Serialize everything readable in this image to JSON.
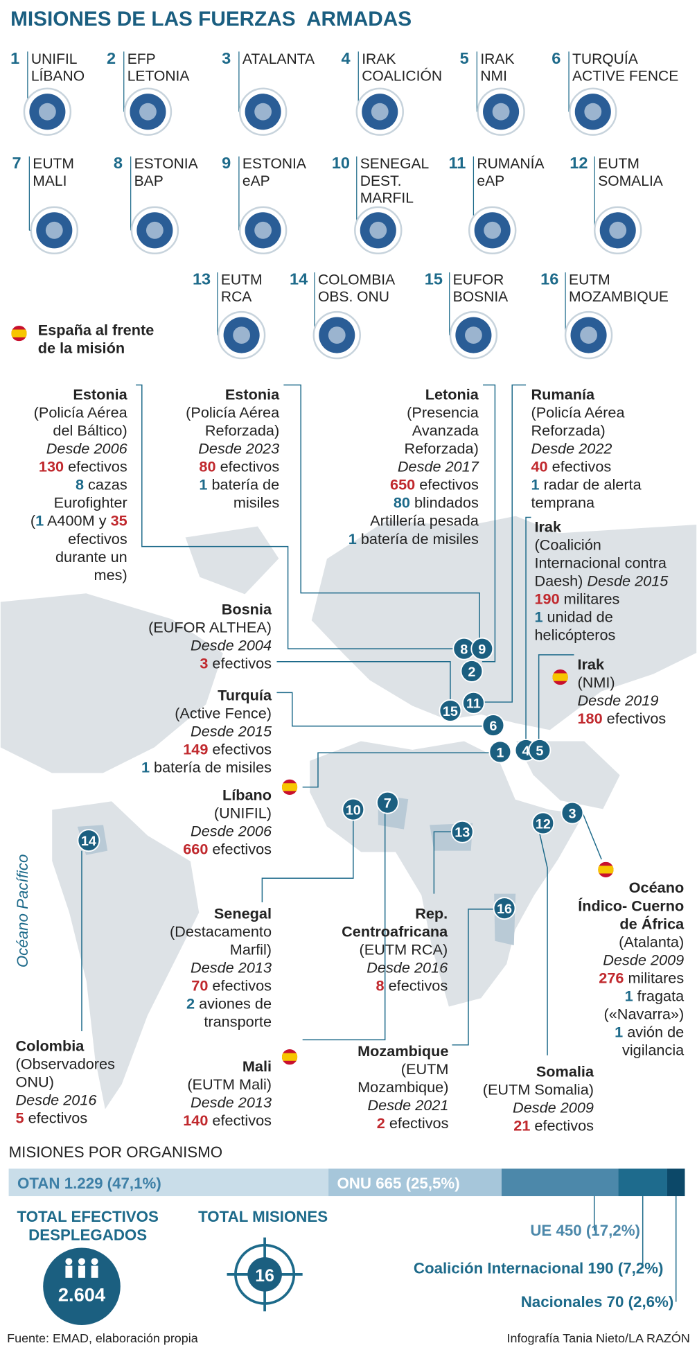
{
  "title": "MISIONES DE LAS FUERZAS  ARMADAS",
  "missions": [
    {
      "number": "1",
      "name": [
        "UNIFIL",
        "LÍBANO"
      ]
    },
    {
      "number": "2",
      "name": [
        "EFP",
        "LETONIA"
      ]
    },
    {
      "number": "3",
      "name": [
        "ATALANTA"
      ]
    },
    {
      "number": "4",
      "name": [
        "IRAK",
        "COALICIÓN"
      ]
    },
    {
      "number": "5",
      "name": [
        "IRAK",
        "NMI"
      ]
    },
    {
      "number": "6",
      "name": [
        "TURQUÍA",
        "ACTIVE FENCE"
      ]
    },
    {
      "number": "7",
      "name": [
        "EUTM",
        "MALI"
      ]
    },
    {
      "number": "8",
      "name": [
        "ESTONIA",
        "BAP"
      ]
    },
    {
      "number": "9",
      "name": [
        "ESTONIA",
        "eAP"
      ]
    },
    {
      "number": "10",
      "name": [
        "SENEGAL",
        "DEST.",
        "MARFIL"
      ]
    },
    {
      "number": "11",
      "name": [
        "RUMANÍA",
        "eAP"
      ]
    },
    {
      "number": "12",
      "name": [
        "EUTM",
        "SOMALIA"
      ]
    },
    {
      "number": "13",
      "name": [
        "EUTM",
        "RCA"
      ]
    },
    {
      "number": "14",
      "name": [
        "COLOMBIA",
        "OBS. ONU"
      ]
    },
    {
      "number": "15",
      "name": [
        "EUFOR",
        "BOSNIA"
      ]
    },
    {
      "number": "16",
      "name": [
        "EUTM",
        "MOZAMBIQUE"
      ]
    }
  ],
  "legend": [
    "España al frente",
    "de la misión"
  ],
  "ocean_label": "Océano Pacífico",
  "callouts": [
    {
      "title": [
        "Estonia"
      ],
      "lines": [
        "(Policía Aérea",
        "del Báltico)",
        [
          {
            "text": "Desde 2006",
            "style": "italic"
          }
        ],
        [
          {
            "text": "130",
            "style": "red"
          },
          " efectivos"
        ],
        [
          {
            "text": "8",
            "style": "blue"
          },
          " cazas"
        ],
        "Eurofighter",
        [
          "(",
          {
            "text": "1",
            "style": "blue"
          },
          " A400M y ",
          {
            "text": "35",
            "style": "red"
          }
        ],
        "efectivos",
        "durante un",
        "mes)"
      ]
    },
    {
      "title": [
        "Estonia"
      ],
      "lines": [
        "(Policía Aérea",
        "Reforzada)",
        [
          {
            "text": "Desde 2023",
            "style": "italic"
          }
        ],
        [
          {
            "text": "80",
            "style": "red"
          },
          " efectivos"
        ],
        [
          {
            "text": "1",
            "style": "blue"
          },
          " batería de"
        ],
        "misiles"
      ]
    },
    {
      "title": [
        "Letonia"
      ],
      "lines": [
        "(Presencia",
        "Avanzada",
        "Reforzada)",
        [
          {
            "text": "Desde 2017",
            "style": "italic"
          }
        ],
        [
          {
            "text": "650",
            "style": "red"
          },
          " efectivos"
        ],
        [
          {
            "text": "80",
            "style": "blue"
          },
          " blindados"
        ],
        "Artillería pesada",
        [
          {
            "text": "1",
            "style": "blue"
          },
          " batería de misiles"
        ]
      ]
    },
    {
      "title": [
        "Rumanía"
      ],
      "lines": [
        "(Policía Aérea",
        "Reforzada)",
        [
          {
            "text": "Desde 2022",
            "style": "italic"
          }
        ],
        [
          {
            "text": "40",
            "style": "red"
          },
          " efectivos"
        ],
        [
          {
            "text": "1",
            "style": "blue"
          },
          " radar de alerta"
        ],
        "temprana"
      ]
    },
    {
      "title": [
        "Irak"
      ],
      "lines": [
        "(Coalición",
        "Internacional contra",
        [
          "Daesh) ",
          {
            "text": "Desde 2015",
            "style": "italic"
          }
        ],
        [
          {
            "text": "190",
            "style": "red"
          },
          " militares"
        ],
        [
          {
            "text": "1",
            "style": "blue"
          },
          " unidad de"
        ],
        "helicópteros"
      ]
    },
    {
      "title": [
        "Bosnia"
      ],
      "lines": [
        "(EUFOR ALTHEA)",
        [
          {
            "text": "Desde 2004",
            "style": "italic"
          }
        ],
        [
          {
            "text": "3",
            "style": "red"
          },
          " efectivos"
        ]
      ]
    },
    {
      "title": [
        "Irak"
      ],
      "flag": true,
      "lines": [
        "(NMI)",
        [
          {
            "text": "Desde 2019",
            "style": "italic"
          }
        ],
        [
          {
            "text": "180",
            "style": "red"
          },
          " efectivos"
        ]
      ]
    },
    {
      "title": [
        "Turquía"
      ],
      "lines": [
        "(Active Fence)",
        [
          {
            "text": "Desde 2015",
            "style": "italic"
          }
        ],
        [
          {
            "text": "149",
            "style": "red"
          },
          " efectivos"
        ],
        [
          {
            "text": "1",
            "style": "blue"
          },
          " batería de misiles"
        ]
      ]
    },
    {
      "title": [
        "Líbano"
      ],
      "flag": true,
      "lines": [
        "(UNIFIL)",
        [
          {
            "text": "Desde 2006",
            "style": "italic"
          }
        ],
        [
          {
            "text": "660",
            "style": "red"
          },
          " efectivos"
        ]
      ]
    },
    {
      "title": [
        "Senegal"
      ],
      "lines": [
        "(Destacamento",
        "Marfil)",
        [
          {
            "text": "Desde 2013",
            "style": "italic"
          }
        ],
        [
          {
            "text": "70",
            "style": "red"
          },
          " efectivos"
        ],
        [
          {
            "text": "2",
            "style": "blue"
          },
          " aviones de"
        ],
        "transporte"
      ]
    },
    {
      "title": [
        "Colombia"
      ],
      "lines": [
        "(Observadores",
        "ONU)",
        [
          {
            "text": "Desde 2016",
            "style": "italic"
          }
        ],
        [
          {
            "text": "5",
            "style": "red"
          },
          " efectivos"
        ]
      ]
    },
    {
      "title": [
        "Mali"
      ],
      "flag": true,
      "lines": [
        "(EUTM Mali)",
        [
          {
            "text": "Desde 2013",
            "style": "italic"
          }
        ],
        [
          {
            "text": "140",
            "style": "red"
          },
          " efectivos"
        ]
      ]
    },
    {
      "title": [
        "Rep.",
        "Centroafricana"
      ],
      "lines": [
        "(EUTM RCA)",
        [
          {
            "text": "Desde 2016",
            "style": "italic"
          }
        ],
        [
          {
            "text": "8",
            "style": "red"
          },
          " efectivos"
        ]
      ]
    },
    {
      "title": [
        "Mozambique"
      ],
      "lines": [
        "(EUTM",
        "Mozambique)",
        [
          {
            "text": "Desde 2021",
            "style": "italic"
          }
        ],
        [
          {
            "text": "2",
            "style": "red"
          },
          " efectivos"
        ]
      ]
    },
    {
      "title": [
        "Somalia"
      ],
      "lines": [
        "(EUTM Somalia)",
        [
          {
            "text": "Desde 2009",
            "style": "italic"
          }
        ],
        [
          {
            "text": "21",
            "style": "red"
          },
          " efectivos"
        ]
      ]
    },
    {
      "title": [
        "Océano",
        "Índico- Cuerno",
        "de África"
      ],
      "flag": true,
      "lines": [
        "(Atalanta)",
        [
          {
            "text": "Desde 2009",
            "style": "italic"
          }
        ],
        [
          {
            "text": "276",
            "style": "red"
          },
          " militares"
        ],
        [
          {
            "text": "1",
            "style": "blue"
          },
          " fragata"
        ],
        "(«Navarra»)",
        [
          {
            "text": "1",
            "style": "blue"
          },
          " avión de"
        ],
        "vigilancia"
      ]
    }
  ],
  "map_markers": [
    "8",
    "9",
    "2",
    "11",
    "15",
    "6",
    "1",
    "4",
    "5",
    "10",
    "7",
    "3",
    "12",
    "13",
    "14",
    "16"
  ],
  "organisms": {
    "title": "MISIONES POR ORGANISMO",
    "items": [
      {
        "label": "OTAN 1.229 (47,1%)",
        "share": 47.1,
        "color": "#c9dde9"
      },
      {
        "label": "ONU 665 (25,5%)",
        "share": 25.5,
        "color": "#a6c6da"
      },
      {
        "label": "UE 450 (17,2%)",
        "share": 17.2,
        "color": "#4c88aa"
      },
      {
        "label": "Coalición Internacional 190 (7,2%)",
        "share": 7.2,
        "color": "#1e6b8d"
      },
      {
        "label": "Nacionales 70 (2,6%)",
        "share": 2.6,
        "color": "#0c4868"
      }
    ]
  },
  "totals": {
    "troops_title": [
      "TOTAL EFECTIVOS",
      "DESPLEGADOS"
    ],
    "troops": "2.604",
    "missions_title": "TOTAL MISIONES",
    "missions": "16"
  },
  "footer": {
    "source": "Fuente: EMAD, elaboración propia",
    "credit": "Infografía Tania Nieto/LA RAZÓN"
  }
}
